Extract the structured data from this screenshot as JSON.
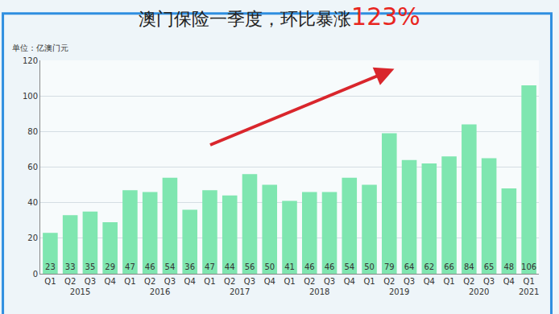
{
  "chart_data": {
    "type": "bar",
    "title": "澳门保险一季度，环比暴涨123%",
    "y_label": "单位：亿澳门元",
    "categories": [
      "Q1",
      "Q2",
      "Q3",
      "Q4",
      "Q1",
      "Q2",
      "Q3",
      "Q4",
      "Q1",
      "Q2",
      "Q3",
      "Q4",
      "Q1",
      "Q2",
      "Q3",
      "Q4",
      "Q1",
      "Q2",
      "Q3",
      "Q4",
      "Q1",
      "Q2",
      "Q3",
      "Q4",
      "Q1"
    ],
    "x_groups": [
      "2015",
      "2015",
      "2015",
      "2015",
      "2016",
      "2016",
      "2016",
      "2016",
      "2017",
      "2017",
      "2017",
      "2017",
      "2018",
      "2018",
      "2018",
      "2018",
      "2019",
      "2019",
      "2019",
      "2019",
      "2020",
      "2020",
      "2020",
      "2020",
      "2021"
    ],
    "values": [
      23,
      33,
      35,
      29,
      47,
      46,
      54,
      36,
      47,
      44,
      56,
      50,
      41,
      46,
      46,
      54,
      50,
      79,
      64,
      62,
      66,
      84,
      65,
      48,
      106
    ],
    "color": "#7fe6b0",
    "ylim": [
      0,
      120
    ],
    "yticks": [
      0,
      20,
      40,
      60,
      80,
      100,
      120
    ],
    "grid": true,
    "data_labels": true
  }
}
